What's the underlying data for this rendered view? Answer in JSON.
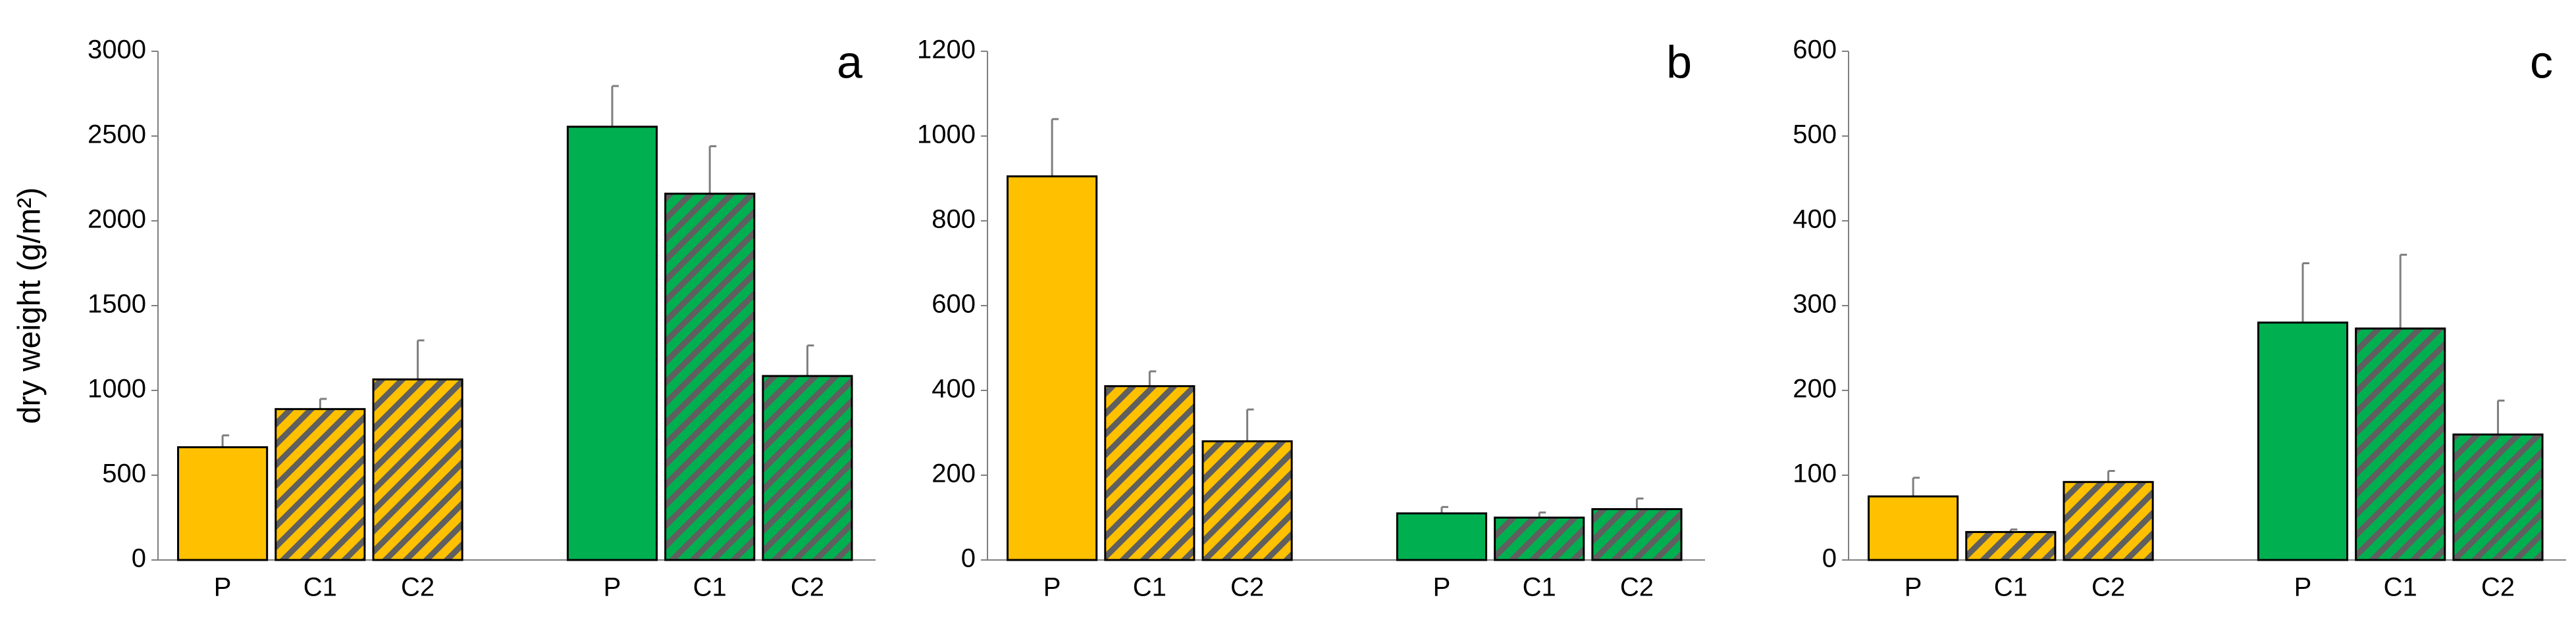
{
  "chart_data": [
    {
      "type": "bar",
      "label": "a",
      "ylabel": "dry weight (g/m²)",
      "categories": [
        "P",
        "C1",
        "C2"
      ],
      "hatched": [
        false,
        true,
        true
      ],
      "series": [
        {
          "color": "#ffc000",
          "values": [
            665,
            890,
            1065
          ],
          "errors": [
            70,
            60,
            230
          ]
        },
        {
          "color": "#00b050",
          "values": [
            2555,
            2160,
            1085
          ],
          "errors": [
            240,
            280,
            180
          ]
        }
      ],
      "ylim": [
        0,
        3000
      ],
      "yticks": [
        0,
        500,
        1000,
        1500,
        2000,
        2500,
        3000
      ]
    },
    {
      "type": "bar",
      "label": "b",
      "categories": [
        "P",
        "C1",
        "C2"
      ],
      "hatched": [
        false,
        true,
        true
      ],
      "series": [
        {
          "color": "#ffc000",
          "values": [
            905,
            410,
            280
          ],
          "errors": [
            135,
            35,
            75
          ]
        },
        {
          "color": "#00b050",
          "values": [
            110,
            100,
            120
          ],
          "errors": [
            15,
            12,
            25
          ]
        }
      ],
      "ylim": [
        0,
        1200
      ],
      "yticks": [
        0,
        200,
        400,
        600,
        800,
        1000,
        1200
      ]
    },
    {
      "type": "bar",
      "label": "c",
      "categories": [
        "P",
        "C1",
        "C2"
      ],
      "hatched": [
        false,
        true,
        true
      ],
      "series": [
        {
          "color": "#ffc000",
          "values": [
            75,
            33,
            92
          ],
          "errors": [
            22,
            3,
            13
          ]
        },
        {
          "color": "#00b050",
          "values": [
            280,
            273,
            148
          ],
          "errors": [
            70,
            87,
            40
          ]
        }
      ],
      "ylim": [
        0,
        600
      ],
      "yticks": [
        0,
        100,
        200,
        300,
        400,
        500,
        600
      ]
    }
  ]
}
